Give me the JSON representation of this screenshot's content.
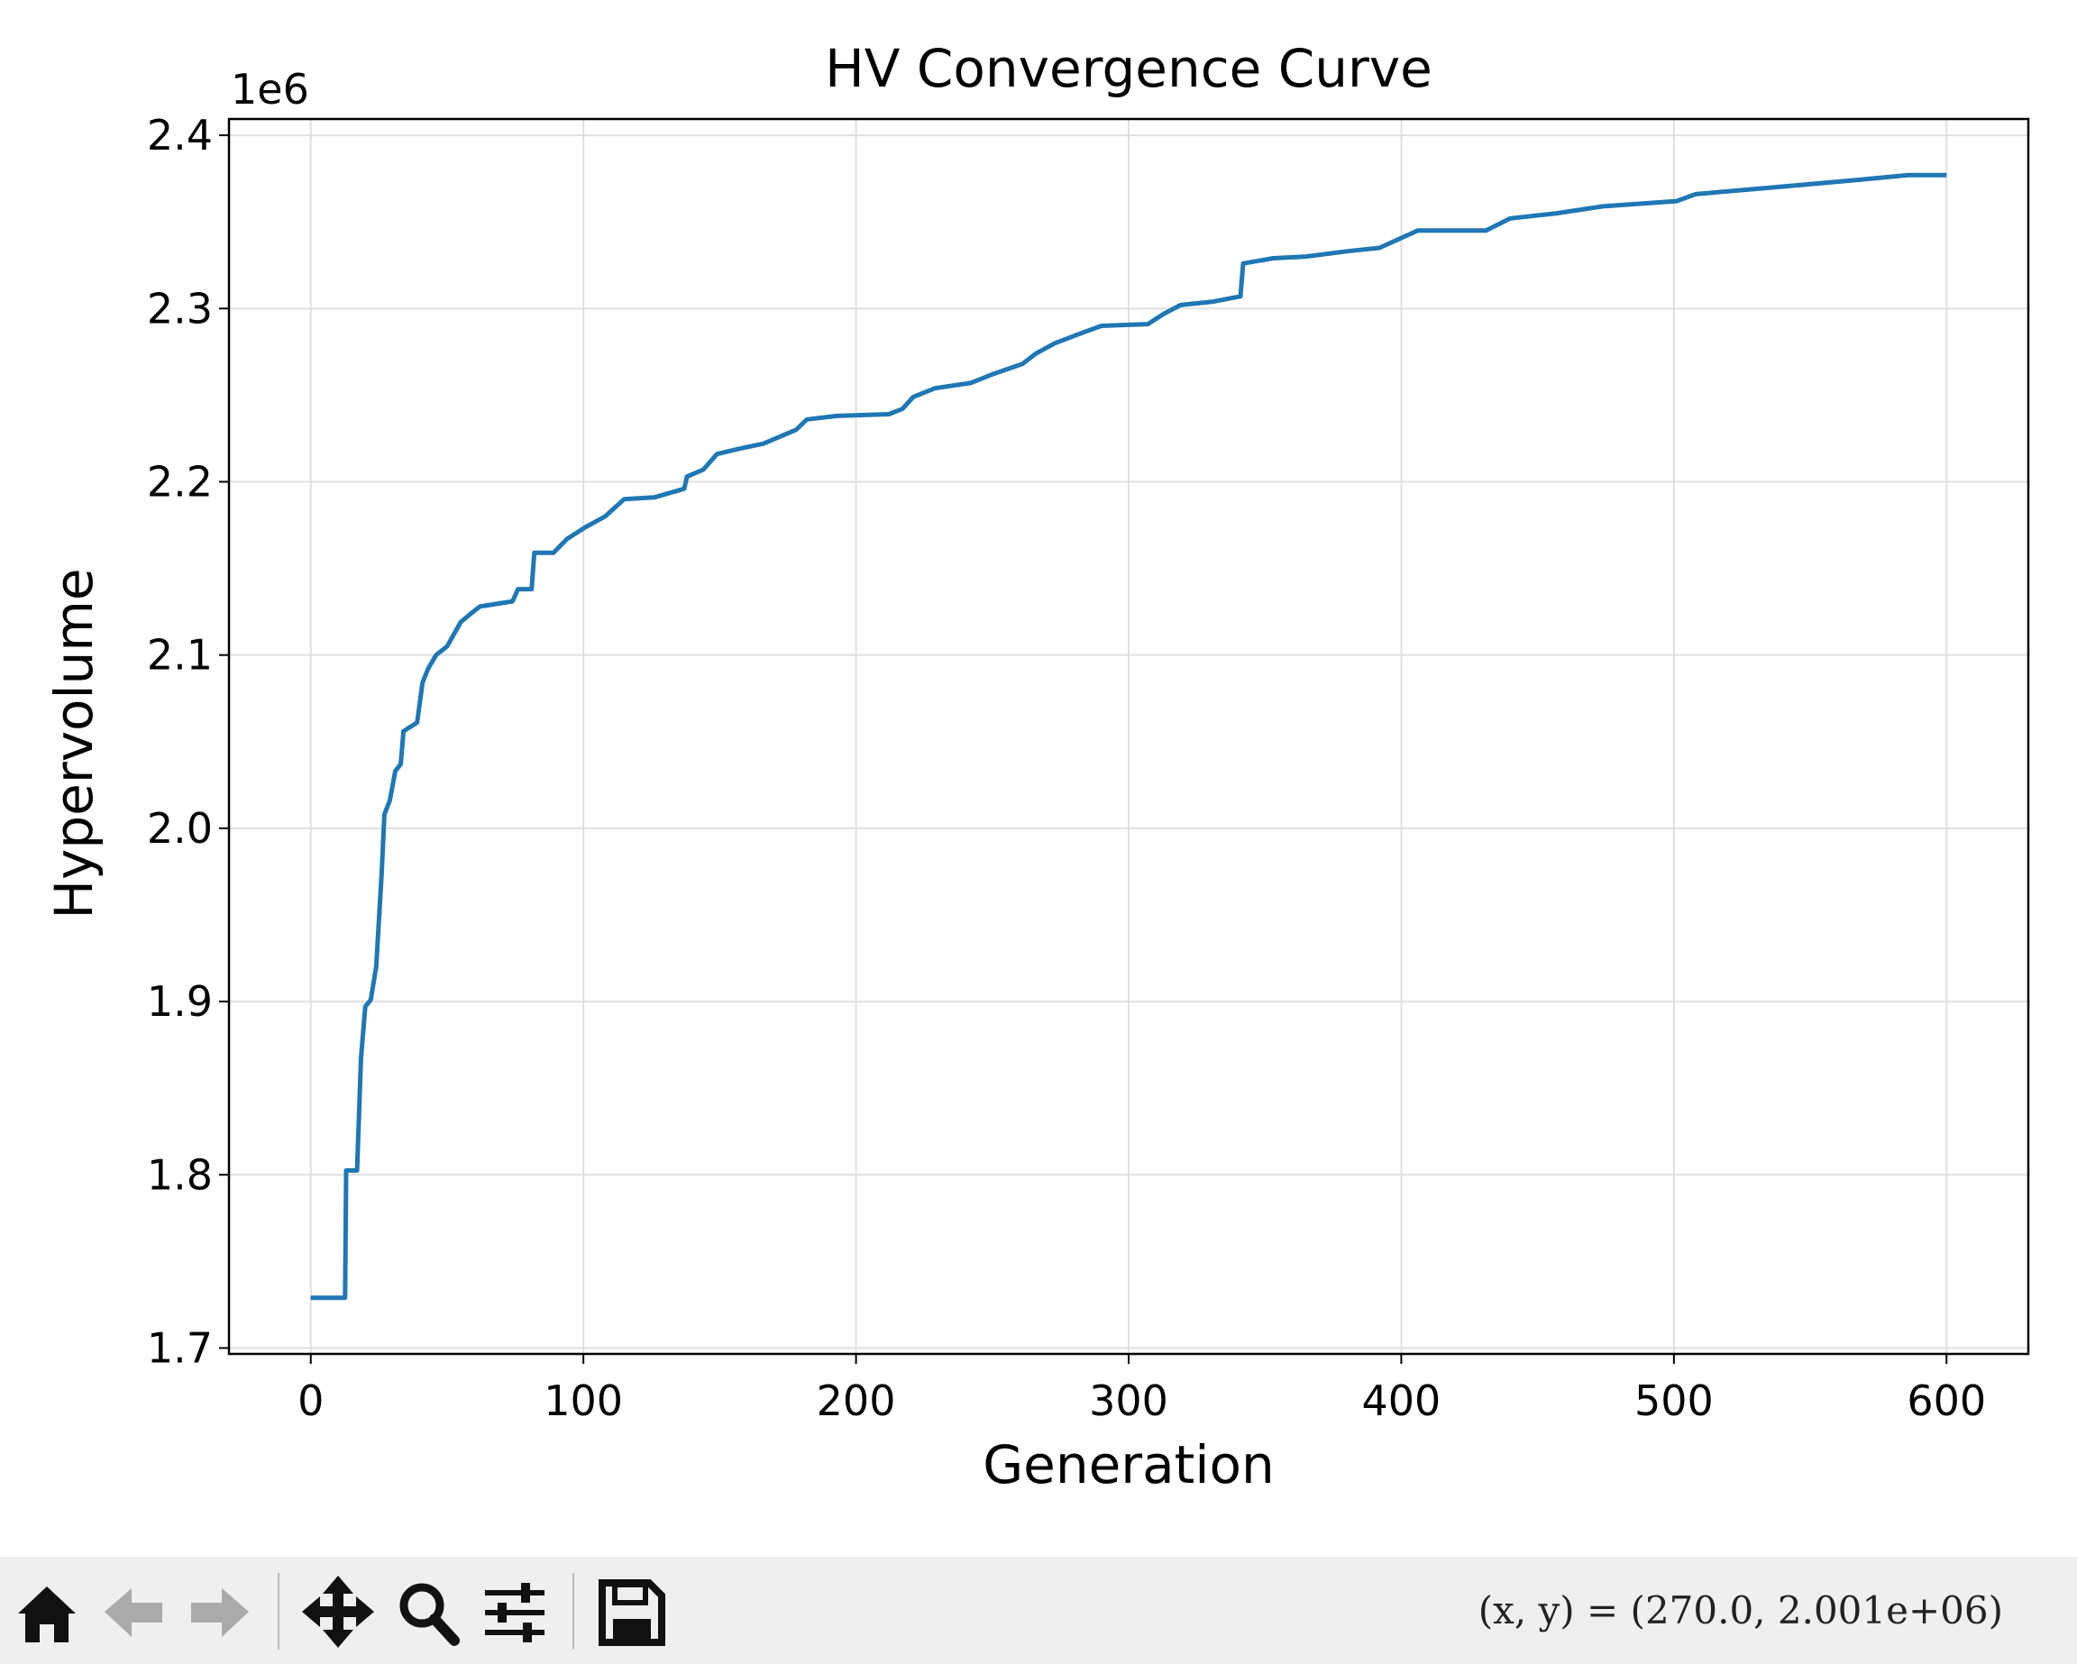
{
  "chart_data": {
    "type": "line",
    "title": "HV Convergence Curve",
    "x_label": "Generation",
    "y_label": "Hypervolume",
    "y_offset_text": "1e6",
    "x": [
      0,
      12.6,
      13,
      17,
      18.4,
      20,
      22,
      24,
      26,
      27,
      29,
      31,
      33,
      34,
      39,
      41,
      43,
      46,
      50,
      55,
      58,
      62,
      74,
      76,
      81,
      82,
      89,
      94,
      101,
      108,
      115,
      126,
      137,
      138,
      144,
      149,
      157,
      166,
      178,
      182,
      193,
      212,
      217,
      221,
      229,
      242,
      250,
      261,
      266,
      273,
      283,
      290,
      307,
      313,
      319,
      331,
      341,
      342,
      353,
      365,
      380,
      392,
      399,
      406,
      431,
      440,
      457,
      474,
      501,
      508,
      537,
      566,
      586,
      600
    ],
    "values": [
      1.729,
      1.729,
      1.8025,
      1.8025,
      1.867,
      1.897,
      1.901,
      1.92,
      1.974,
      2.008,
      2.016,
      2.033,
      2.037,
      2.056,
      2.061,
      2.084,
      2.092,
      2.1,
      2.105,
      2.119,
      2.123,
      2.128,
      2.131,
      2.138,
      2.138,
      2.159,
      2.159,
      2.167,
      2.174,
      2.18,
      2.19,
      2.191,
      2.196,
      2.203,
      2.207,
      2.216,
      2.219,
      2.222,
      2.23,
      2.236,
      2.238,
      2.239,
      2.242,
      2.249,
      2.254,
      2.257,
      2.262,
      2.268,
      2.274,
      2.28,
      2.286,
      2.29,
      2.291,
      2.297,
      2.302,
      2.304,
      2.307,
      2.326,
      2.329,
      2.33,
      2.333,
      2.335,
      2.34,
      2.345,
      2.345,
      2.352,
      2.355,
      2.359,
      2.362,
      2.366,
      2.37,
      2.374,
      2.377,
      2.377
    ],
    "color": "#1f77b4",
    "xlim": [
      -30,
      630
    ],
    "xticks": [
      0,
      100,
      200,
      300,
      400,
      500,
      600
    ],
    "ylim": [
      1.6966,
      2.4094
    ],
    "yticks": [
      1.7,
      1.8,
      1.9,
      {
        "value": 2,
        "label": "2.0"
      },
      2.1,
      2.2,
      2.3,
      2.4
    ],
    "grid": true
  },
  "toolbar": {
    "coords": "(x,  y)  =  (270.0,  2.001e+06)"
  }
}
